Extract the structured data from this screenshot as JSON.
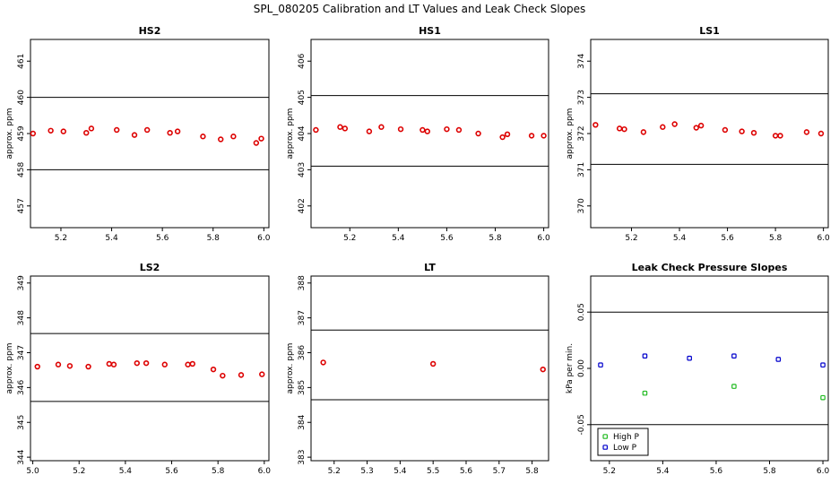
{
  "suptitle": "SPL_080205  Calibration and LT Values and Leak Check Slopes",
  "colors": {
    "red": "#dd0000",
    "green": "#22bb22",
    "blue": "#0000cc",
    "axis": "#000000"
  },
  "chart_data": [
    {
      "type": "scatter",
      "title": "HS2",
      "ylabel": "approx. ppm",
      "xlim": [
        5.08,
        6.02
      ],
      "ylim": [
        456.4,
        461.6
      ],
      "xticks": [
        "5.2",
        "5.4",
        "5.6",
        "5.8",
        "6.0"
      ],
      "xtick_values": [
        5.2,
        5.4,
        5.6,
        5.8,
        6.0
      ],
      "yticks": [
        "457",
        "458",
        "459",
        "460",
        "461"
      ],
      "ytick_values": [
        457,
        458,
        459,
        460,
        461
      ],
      "hlines": [
        458.0,
        460.0
      ],
      "series": [
        {
          "color": "red",
          "x": [
            5.09,
            5.16,
            5.21,
            5.3,
            5.32,
            5.42,
            5.49,
            5.54,
            5.63,
            5.66,
            5.76,
            5.83,
            5.88,
            5.97,
            5.99
          ],
          "y": [
            459.0,
            459.08,
            459.06,
            459.02,
            459.14,
            459.1,
            458.96,
            459.1,
            459.02,
            459.06,
            458.92,
            458.84,
            458.92,
            458.74,
            458.86
          ]
        }
      ]
    },
    {
      "type": "scatter",
      "title": "HS1",
      "ylabel": "approx. ppm",
      "xlim": [
        5.04,
        6.02
      ],
      "ylim": [
        401.4,
        406.6
      ],
      "xticks": [
        "5.2",
        "5.4",
        "5.6",
        "5.8",
        "6.0"
      ],
      "xtick_values": [
        5.2,
        5.4,
        5.6,
        5.8,
        6.0
      ],
      "yticks": [
        "402",
        "403",
        "404",
        "405",
        "406"
      ],
      "ytick_values": [
        402,
        403,
        404,
        405,
        406
      ],
      "hlines": [
        403.1,
        405.05
      ],
      "series": [
        {
          "color": "red",
          "x": [
            5.06,
            5.16,
            5.18,
            5.28,
            5.33,
            5.41,
            5.5,
            5.52,
            5.6,
            5.65,
            5.73,
            5.83,
            5.85,
            5.95,
            6.0
          ],
          "y": [
            404.1,
            404.18,
            404.14,
            404.06,
            404.18,
            404.12,
            404.1,
            404.06,
            404.12,
            404.1,
            404.0,
            403.9,
            403.98,
            403.94,
            403.94
          ]
        }
      ]
    },
    {
      "type": "scatter",
      "title": "LS1",
      "ylabel": "approx. ppm",
      "xlim": [
        5.03,
        6.02
      ],
      "ylim": [
        369.4,
        374.6
      ],
      "xticks": [
        "5.2",
        "5.4",
        "5.6",
        "5.8",
        "6.0"
      ],
      "xtick_values": [
        5.2,
        5.4,
        5.6,
        5.8,
        6.0
      ],
      "yticks": [
        "370",
        "371",
        "372",
        "373",
        "374"
      ],
      "ytick_values": [
        370,
        371,
        372,
        373,
        374
      ],
      "hlines": [
        371.15,
        373.1
      ],
      "series": [
        {
          "color": "red",
          "x": [
            5.05,
            5.15,
            5.17,
            5.25,
            5.33,
            5.38,
            5.47,
            5.49,
            5.59,
            5.66,
            5.71,
            5.8,
            5.82,
            5.93,
            5.99
          ],
          "y": [
            372.24,
            372.14,
            372.12,
            372.04,
            372.18,
            372.26,
            372.16,
            372.22,
            372.1,
            372.06,
            372.02,
            371.94,
            371.94,
            372.04,
            372.0
          ]
        }
      ]
    },
    {
      "type": "scatter",
      "title": "LS2",
      "ylabel": "approx. ppm",
      "xlim": [
        4.99,
        6.02
      ],
      "ylim": [
        343.9,
        349.2
      ],
      "xticks": [
        "5.0",
        "5.2",
        "5.4",
        "5.6",
        "5.8",
        "6.0"
      ],
      "xtick_values": [
        5.0,
        5.2,
        5.4,
        5.6,
        5.8,
        6.0
      ],
      "yticks": [
        "344",
        "345",
        "346",
        "347",
        "348",
        "349"
      ],
      "ytick_values": [
        344,
        345,
        346,
        347,
        348,
        349
      ],
      "hlines": [
        345.6,
        347.55
      ],
      "series": [
        {
          "color": "red",
          "x": [
            5.02,
            5.11,
            5.16,
            5.24,
            5.33,
            5.35,
            5.45,
            5.49,
            5.57,
            5.67,
            5.69,
            5.78,
            5.82,
            5.9,
            5.99
          ],
          "y": [
            346.6,
            346.66,
            346.62,
            346.6,
            346.68,
            346.66,
            346.7,
            346.7,
            346.66,
            346.66,
            346.68,
            346.52,
            346.34,
            346.36,
            346.38
          ]
        }
      ]
    },
    {
      "type": "scatter",
      "title": "LT",
      "ylabel": "approx. ppm",
      "xlim": [
        5.13,
        5.85
      ],
      "ylim": [
        382.9,
        388.2
      ],
      "xticks": [
        "5.2",
        "5.3",
        "5.4",
        "5.5",
        "5.6",
        "5.7",
        "5.8"
      ],
      "xtick_values": [
        5.2,
        5.3,
        5.4,
        5.5,
        5.6,
        5.7,
        5.8
      ],
      "yticks": [
        "383",
        "384",
        "385",
        "386",
        "387",
        "388"
      ],
      "ytick_values": [
        383,
        384,
        385,
        386,
        387,
        388
      ],
      "hlines": [
        384.65,
        386.65
      ],
      "series": [
        {
          "color": "red",
          "x": [
            5.167,
            5.5,
            5.833
          ],
          "y": [
            385.72,
            385.68,
            385.52
          ]
        }
      ]
    },
    {
      "type": "scatter",
      "title": "Leak Check Pressure Slopes",
      "ylabel": "kPa per min.",
      "xlim": [
        5.13,
        6.02
      ],
      "ylim": [
        -0.082,
        0.082
      ],
      "xticks": [
        "5.2",
        "5.4",
        "5.6",
        "5.8",
        "6.0"
      ],
      "xtick_values": [
        5.2,
        5.4,
        5.6,
        5.8,
        6.0
      ],
      "yticks": [
        "-0.05",
        "0.00",
        "0.05"
      ],
      "ytick_values": [
        -0.05,
        0.0,
        0.05
      ],
      "hlines": [
        -0.05,
        0.05
      ],
      "legend": {
        "position": "bottom-left",
        "labels": [
          "High P",
          "Low P"
        ],
        "colors": [
          "green",
          "blue"
        ]
      },
      "series": [
        {
          "name": "High P",
          "color": "green",
          "x": [
            5.333,
            5.667,
            6.0
          ],
          "y": [
            -0.022,
            -0.016,
            -0.026
          ]
        },
        {
          "name": "Low P",
          "color": "blue",
          "x": [
            5.167,
            5.333,
            5.5,
            5.667,
            5.833,
            6.0
          ],
          "y": [
            0.003,
            0.011,
            0.009,
            0.011,
            0.008,
            0.003
          ]
        }
      ]
    }
  ]
}
